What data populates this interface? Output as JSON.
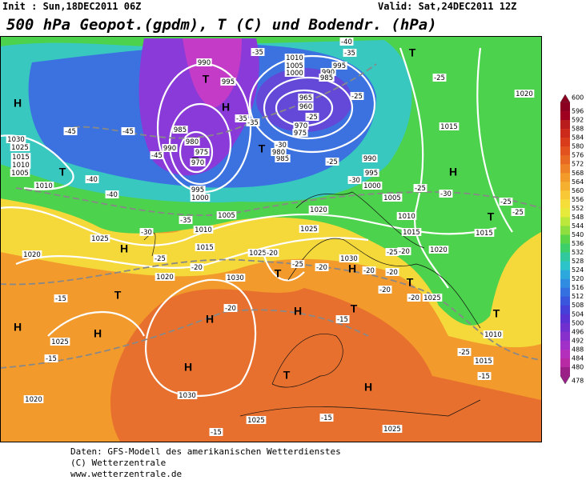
{
  "header": {
    "init": "Init : Sun,18DEC2011 06Z",
    "valid": "Valid: Sat,24DEC2011 12Z",
    "title": "500 hPa Geopot.(gpdm), T (C) und Bodendr. (hPa)"
  },
  "colorbar": {
    "labels": [
      600,
      596,
      592,
      588,
      584,
      580,
      576,
      572,
      568,
      564,
      560,
      556,
      552,
      548,
      544,
      540,
      536,
      532,
      528,
      524,
      520,
      516,
      512,
      508,
      504,
      500,
      496,
      492,
      488,
      484,
      480,
      478
    ],
    "colors": [
      "#8b0020",
      "#a00020",
      "#b81c1c",
      "#cc2a1a",
      "#d83c1a",
      "#e2521e",
      "#e86a22",
      "#ee8226",
      "#f29a2a",
      "#f6b030",
      "#f8c836",
      "#f6de3a",
      "#e6ea3a",
      "#bce83c",
      "#8ede40",
      "#5cd448",
      "#3ccf6a",
      "#30c89c",
      "#2cc4c8",
      "#2ca8dc",
      "#308ce0",
      "#3470e0",
      "#3a56dc",
      "#4640d8",
      "#5a32d4",
      "#7030d0",
      "#8830cc",
      "#a030c8",
      "#b430bc",
      "#b82aa4",
      "#9a2088"
    ]
  },
  "map": {
    "pressure_centers": [
      "H",
      "T",
      "H",
      "T",
      "T",
      "H",
      "T",
      "T",
      "H",
      "T",
      "H",
      "H",
      "T",
      "H",
      "H",
      "H",
      "T",
      "T",
      "H",
      "T",
      "H",
      "T",
      "T"
    ],
    "isobar_labels": [
      990,
      995,
      985,
      980,
      975,
      970,
      990,
      995,
      1000,
      1010,
      1005,
      1000,
      995,
      990,
      985,
      965,
      960,
      970,
      975,
      985,
      980,
      990,
      995,
      1000,
      1005,
      1010,
      1015,
      1015,
      1015,
      1020,
      1030,
      1025,
      1015,
      1010,
      1005,
      1010,
      1005,
      1010,
      1015,
      1025,
      1020,
      1020,
      1030,
      1025,
      1025,
      1020,
      1030,
      1025,
      1020,
      1010,
      1015,
      1025,
      1030,
      1025,
      1025,
      1020
    ],
    "temperature_labels": [
      -40,
      -35,
      -35,
      -25,
      -25,
      -35,
      -45,
      -45,
      -30,
      -45,
      -25,
      -30,
      -40,
      -40,
      -25,
      -30,
      -25,
      -25,
      -25,
      -35,
      -30,
      -25,
      -20,
      -20,
      -25,
      -20,
      -20,
      -20,
      -20,
      -20,
      -20,
      -15,
      -20,
      -15,
      -15,
      -25,
      -15,
      -15,
      -15,
      -25,
      -35
    ]
  },
  "footer": {
    "lines": [
      "Daten: GFS-Modell des amerikanischen Wetterdienstes",
      "(C) Wetterzentrale",
      "www.wetterzentrale.de"
    ]
  }
}
